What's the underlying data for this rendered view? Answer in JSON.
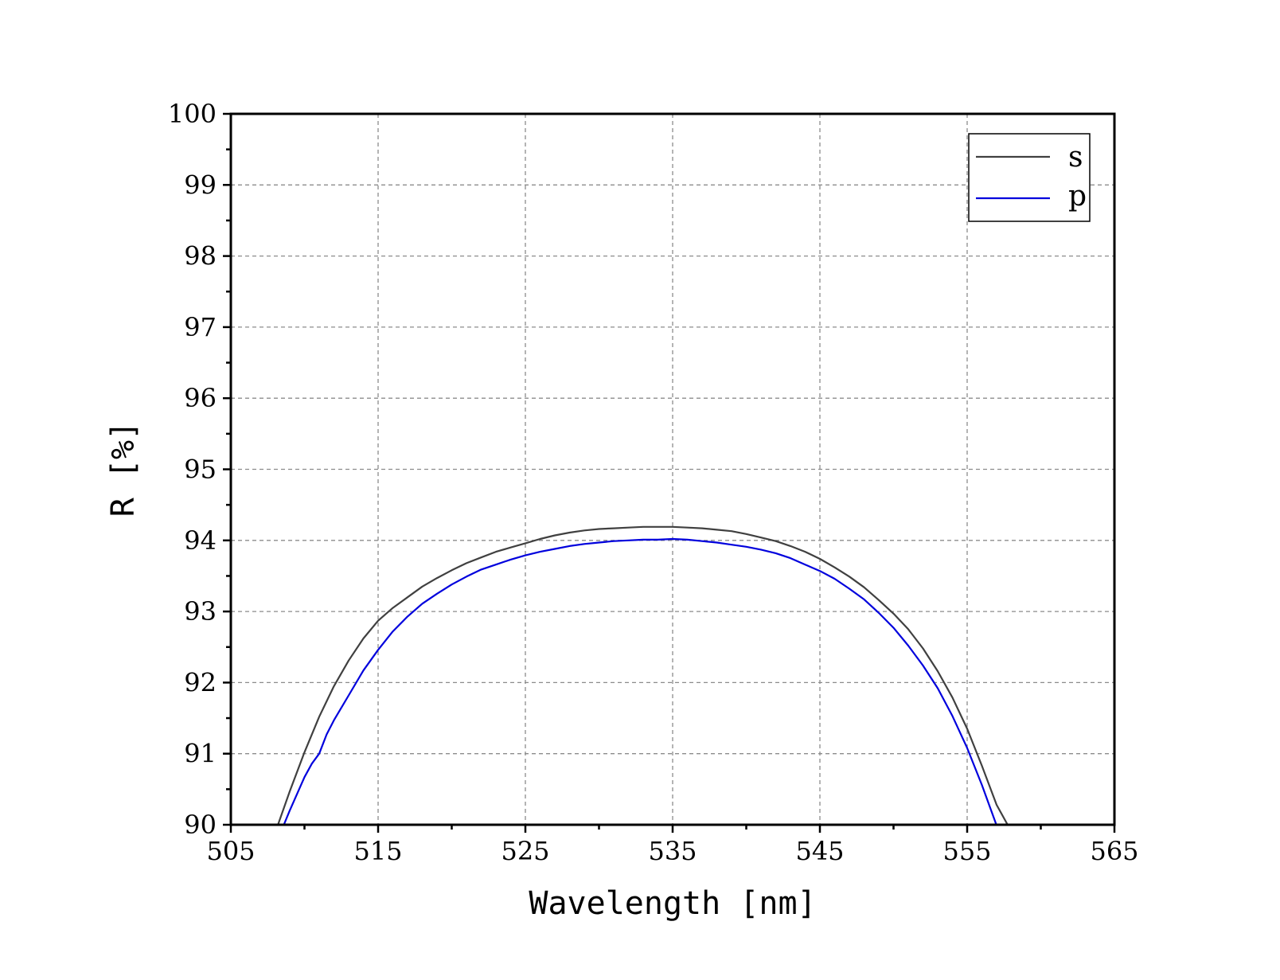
{
  "chart_data": {
    "type": "line",
    "title": "",
    "xlabel": "Wavelength [nm]",
    "ylabel": "R [%]",
    "xlim": [
      505,
      565
    ],
    "ylim": [
      90,
      100
    ],
    "x_ticks": [
      505,
      515,
      525,
      535,
      545,
      555,
      565
    ],
    "x_tick_labels": [
      "505",
      "515",
      "525",
      "535",
      "545",
      "555",
      "565"
    ],
    "y_ticks": [
      90,
      91,
      92,
      93,
      94,
      95,
      96,
      97,
      98,
      99,
      100
    ],
    "y_tick_labels": [
      "90",
      "91",
      "92",
      "93",
      "94",
      "95",
      "96",
      "97",
      "98",
      "99",
      "100"
    ],
    "grid": true,
    "legend_position": "top-right",
    "series": [
      {
        "name": "s",
        "color": "#404040",
        "x": [
          508.2,
          509,
          510,
          511,
          512,
          513,
          514,
          515,
          516,
          517,
          518,
          519,
          520,
          521,
          522,
          523,
          524,
          525,
          526,
          527,
          528,
          529,
          530,
          531,
          532,
          533,
          534,
          535,
          536,
          537,
          538,
          539,
          540,
          541,
          542,
          543,
          544,
          545,
          546,
          547,
          548,
          549,
          550,
          551,
          552,
          553,
          554,
          555,
          556,
          557,
          557.8
        ],
        "y": [
          90.0,
          90.47,
          91.02,
          91.52,
          91.95,
          92.31,
          92.62,
          92.87,
          93.05,
          93.2,
          93.35,
          93.47,
          93.58,
          93.68,
          93.76,
          93.84,
          93.9,
          93.96,
          94.02,
          94.07,
          94.11,
          94.14,
          94.16,
          94.17,
          94.18,
          94.19,
          94.19,
          94.19,
          94.18,
          94.17,
          94.15,
          94.13,
          94.09,
          94.04,
          93.99,
          93.92,
          93.84,
          93.74,
          93.62,
          93.49,
          93.34,
          93.16,
          92.97,
          92.75,
          92.48,
          92.16,
          91.79,
          91.35,
          90.83,
          90.28,
          89.98
        ]
      },
      {
        "name": "p",
        "color": "#0000dd",
        "x": [
          508.6,
          509,
          510,
          510.5,
          511,
          511.5,
          512,
          513,
          514,
          515,
          516,
          517,
          518,
          519,
          520,
          521,
          522,
          523,
          524,
          525,
          526,
          527,
          528,
          529,
          530,
          531,
          532,
          533,
          534,
          535,
          536,
          537,
          538,
          539,
          540,
          541,
          542,
          543,
          544,
          545,
          546,
          547,
          548,
          549,
          550,
          551,
          552,
          553,
          554,
          555,
          556,
          557,
          557.5
        ],
        "y": [
          90.0,
          90.2,
          90.67,
          90.86,
          91.0,
          91.27,
          91.47,
          91.82,
          92.17,
          92.46,
          92.72,
          92.93,
          93.11,
          93.25,
          93.38,
          93.49,
          93.59,
          93.66,
          93.73,
          93.79,
          93.84,
          93.88,
          93.92,
          93.95,
          93.97,
          93.99,
          94.0,
          94.01,
          94.01,
          94.02,
          94.01,
          93.99,
          93.97,
          93.94,
          93.91,
          93.87,
          93.82,
          93.75,
          93.66,
          93.57,
          93.46,
          93.32,
          93.17,
          92.98,
          92.77,
          92.52,
          92.24,
          91.92,
          91.53,
          91.08,
          90.56,
          89.99,
          89.7
        ]
      }
    ]
  }
}
